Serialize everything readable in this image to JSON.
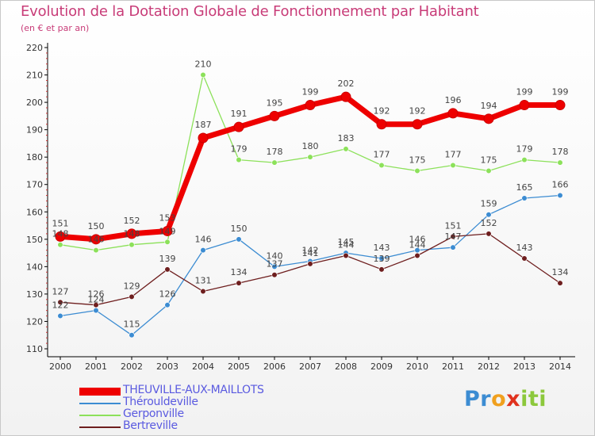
{
  "title": "Evolution de la Dotation Globale de Fonctionnement par Habitant",
  "subtitle": "(en € et par an)",
  "logo_text": "Proxiti",
  "colors": {
    "title": "#c83c78",
    "axis": "#000000",
    "grid": "#d0d0d0",
    "label": "#333333",
    "legend_text": "#5a5ae0"
  },
  "chart_data": {
    "type": "line",
    "title": "Evolution de la Dotation Globale de Fonctionnement par Habitant",
    "subtitle": "(en € et par an)",
    "xlabel": "",
    "ylabel": "",
    "ylim": [
      110,
      220
    ],
    "yticks": [
      110,
      120,
      130,
      140,
      150,
      160,
      170,
      180,
      190,
      200,
      210,
      220
    ],
    "grid": false,
    "legend_position": "bottom-left",
    "categories": [
      "2000",
      "2001",
      "2002",
      "2003",
      "2004",
      "2005",
      "2006",
      "2007",
      "2008",
      "2009",
      "2010",
      "2011",
      "2012",
      "2013",
      "2014"
    ],
    "series": [
      {
        "name": "THEUVILLE-AUX-MAILLOTS",
        "color": "#ee0000",
        "values": [
          151,
          150,
          152,
          153,
          187,
          191,
          195,
          199,
          202,
          192,
          192,
          196,
          194,
          199,
          199
        ]
      },
      {
        "name": "Thérouldeville",
        "color": "#3c8cd2",
        "values": [
          122,
          124,
          115,
          126,
          146,
          150,
          140,
          142,
          145,
          143,
          146,
          147,
          159,
          165,
          166
        ]
      },
      {
        "name": "Gerponville",
        "color": "#8ce15a",
        "values": [
          148,
          146,
          148,
          149,
          210,
          179,
          178,
          180,
          183,
          177,
          175,
          177,
          175,
          179,
          178
        ]
      },
      {
        "name": "Bertreville",
        "color": "#6e1e1e",
        "values": [
          127,
          126,
          129,
          139,
          131,
          134,
          137,
          141,
          144,
          139,
          144,
          151,
          152,
          143,
          134
        ]
      }
    ]
  }
}
